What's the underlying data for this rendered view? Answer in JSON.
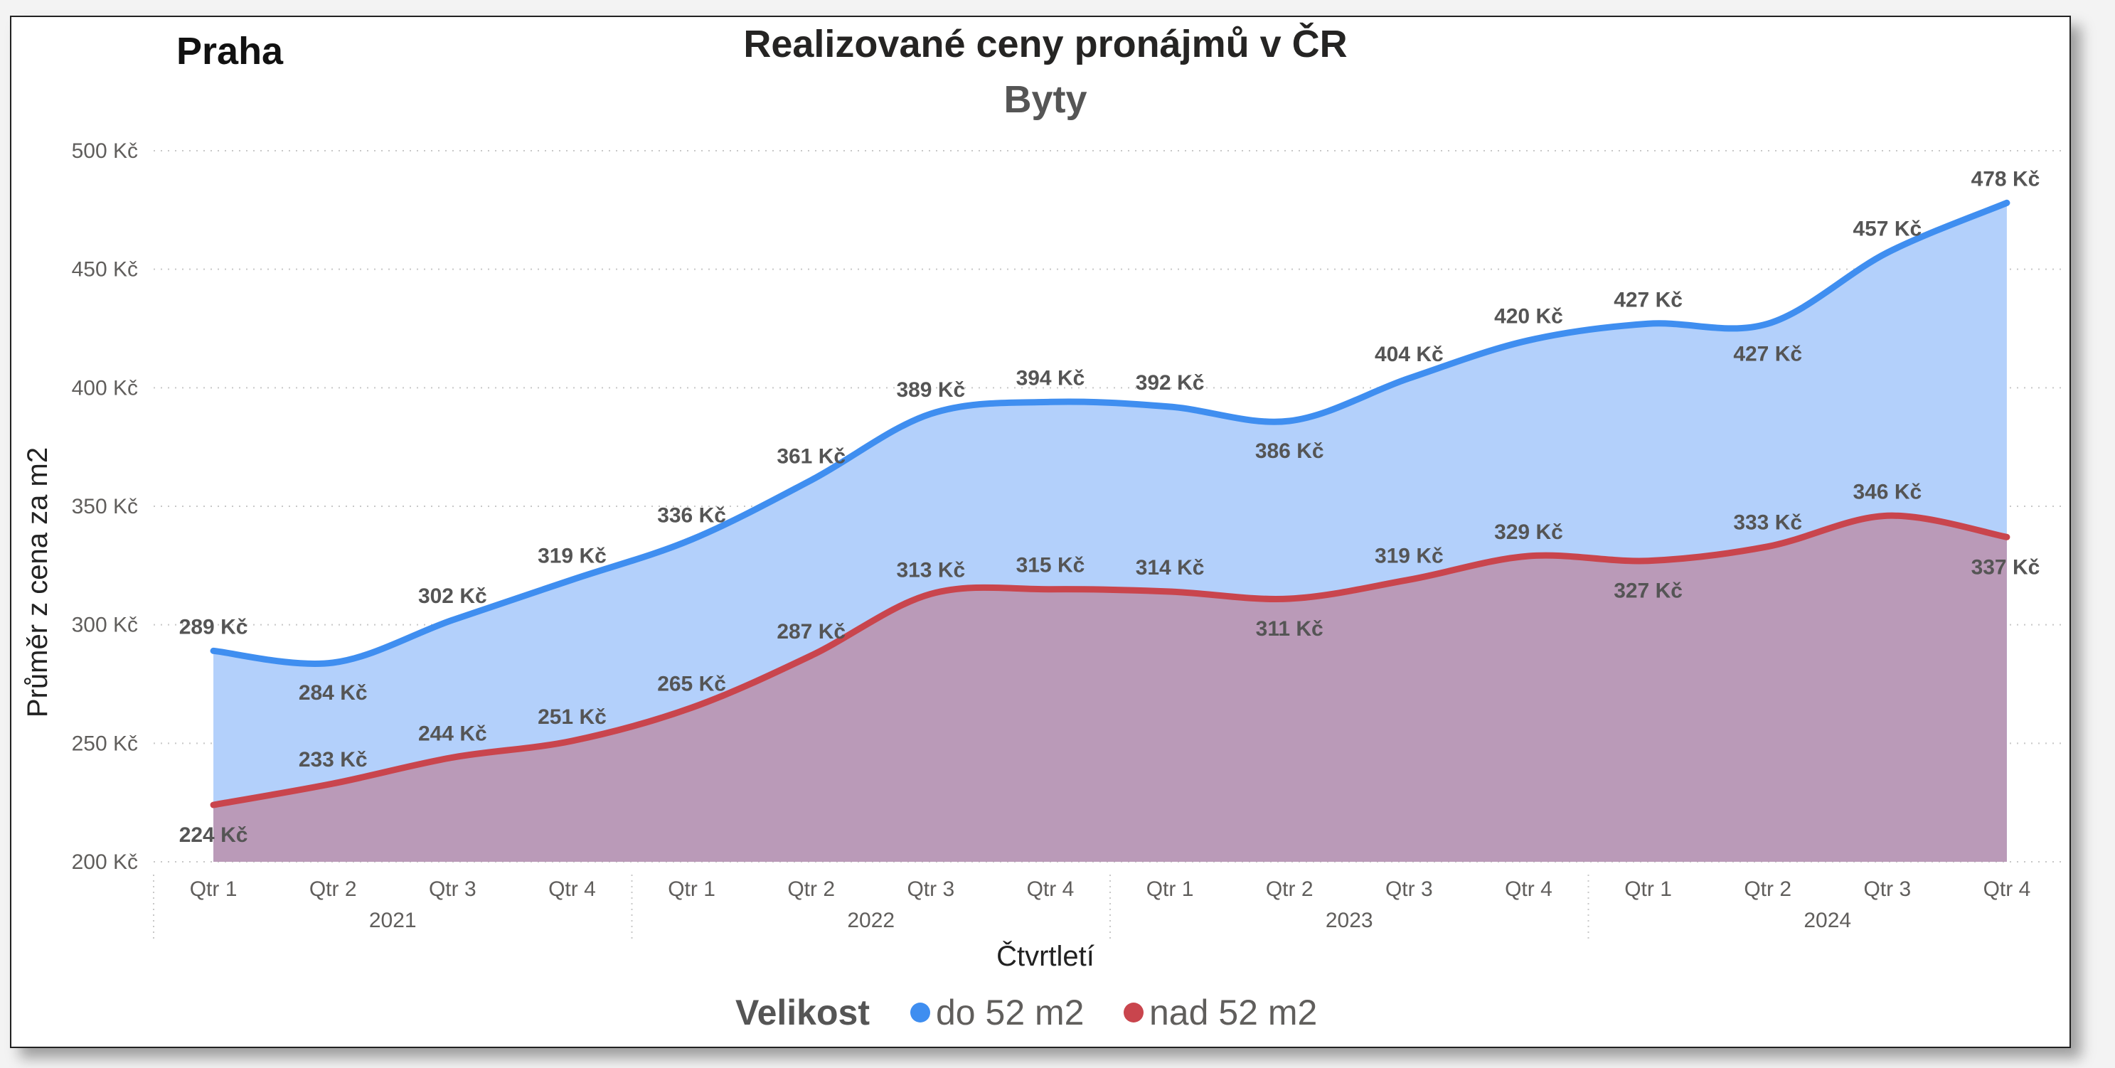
{
  "chart_data": {
    "type": "area",
    "header_label": "Praha",
    "title": "Realizované ceny pronájmů v ČR",
    "subtitle": "Byty",
    "xlabel": "Čtvrtletí",
    "ylabel": "Průměr z cena za m2",
    "ylim": [
      200,
      500
    ],
    "yticks": [
      "200 Kč",
      "250 Kč",
      "300 Kč",
      "350 Kč",
      "400 Kč",
      "450 Kč",
      "500 Kč"
    ],
    "ytick_values": [
      200,
      250,
      300,
      350,
      400,
      450,
      500
    ],
    "categories": [
      "Qtr 1",
      "Qtr 2",
      "Qtr 3",
      "Qtr 4",
      "Qtr 1",
      "Qtr 2",
      "Qtr 3",
      "Qtr 4",
      "Qtr 1",
      "Qtr 2",
      "Qtr 3",
      "Qtr 4",
      "Qtr 1",
      "Qtr 2",
      "Qtr 3",
      "Qtr 4"
    ],
    "years": [
      "2021",
      "2022",
      "2023",
      "2024"
    ],
    "grid": true,
    "legend": {
      "title": "Velikost",
      "position": "bottom"
    },
    "series": [
      {
        "name": "do 52 m2",
        "color": "#3f8ef0",
        "fill": "#b3d0fb",
        "values": [
          289,
          284,
          302,
          319,
          336,
          361,
          389,
          394,
          392,
          386,
          404,
          420,
          427,
          427,
          457,
          478
        ],
        "labels": [
          "289 Kč",
          "284 Kč",
          "302 Kč",
          "319 Kč",
          "336 Kč",
          "361 Kč",
          "389 Kč",
          "394 Kč",
          "392 Kč",
          "386 Kč",
          "404 Kč",
          "420 Kč",
          "427 Kč",
          "427 Kč",
          "457 Kč",
          "478 Kč"
        ]
      },
      {
        "name": "nad 52 m2",
        "color": "#c9454d",
        "fill": "#ba9ab8",
        "values": [
          224,
          233,
          244,
          251,
          265,
          287,
          313,
          315,
          314,
          311,
          319,
          329,
          327,
          333,
          346,
          337
        ],
        "labels": [
          "224 Kč",
          "233 Kč",
          "244 Kč",
          "251 Kč",
          "265 Kč",
          "287 Kč",
          "313 Kč",
          "315 Kč",
          "314 Kč",
          "311 Kč",
          "319 Kč",
          "329 Kč",
          "327 Kč",
          "333 Kč",
          "346 Kč",
          "337 Kč"
        ]
      }
    ]
  }
}
